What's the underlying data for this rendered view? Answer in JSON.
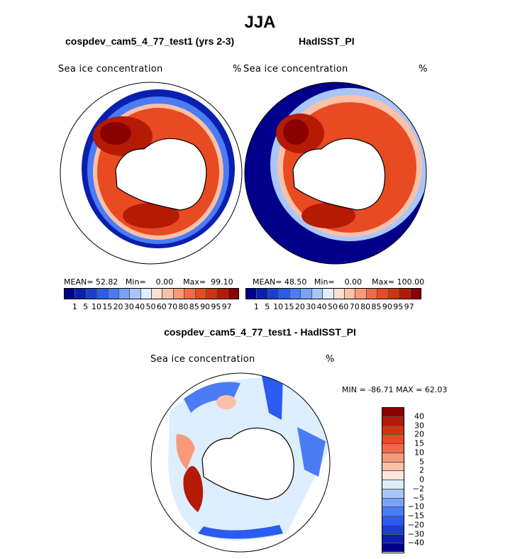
{
  "title": "JJA",
  "panels": [
    {
      "model": "cospdev_cam5_4_77_test1 (yrs 2-3)",
      "variable": "Sea ice concentration",
      "units": "%",
      "mean": "52.82",
      "min": "0.00",
      "max": "99.10",
      "mean_label": "MEAN=",
      "min_label": "Min=",
      "max_label": "Max="
    },
    {
      "model": "HadISST_PI",
      "variable": "Sea ice concentration",
      "units": "%",
      "mean": "48.50",
      "min": "0.00",
      "max": "100.00",
      "mean_label": "MEAN=",
      "min_label": "Min=",
      "max_label": "Max="
    }
  ],
  "diff": {
    "title": "cospdev_cam5_4_77_test1 - HadISST_PI",
    "variable": "Sea ice concentration",
    "units": "%",
    "stats": "MIN = -86.71 MAX =  62.03"
  },
  "colorbar_levels": [
    "1",
    "5",
    "10",
    "15",
    "20",
    "30",
    "40",
    "50",
    "60",
    "70",
    "80",
    "85",
    "90",
    "95",
    "97"
  ],
  "colorbar_colors": [
    "#00008b",
    "#0a1fb0",
    "#1a3fd0",
    "#2a5cf0",
    "#4a7cf5",
    "#7aa3f8",
    "#a8c6fb",
    "#ddeeff",
    "#fde0d0",
    "#fbc0a8",
    "#f89a7a",
    "#f26a48",
    "#e84a22",
    "#d23410",
    "#b51a05",
    "#8b0000"
  ],
  "diff_levels": [
    "40",
    "30",
    "20",
    "15",
    "10",
    "5",
    "2",
    "0",
    "−2",
    "−5",
    "−10",
    "−15",
    "−20",
    "−30",
    "−40"
  ],
  "diff_colors": [
    "#8b0000",
    "#b51a05",
    "#d23410",
    "#e84a22",
    "#f26a48",
    "#f89a7a",
    "#fbc0a8",
    "#fde7dc",
    "#ddeeff",
    "#a8c6fb",
    "#7aa3f8",
    "#4a7cf5",
    "#2a5cf0",
    "#1a3fd0",
    "#0a1fb0",
    "#00008b"
  ]
}
